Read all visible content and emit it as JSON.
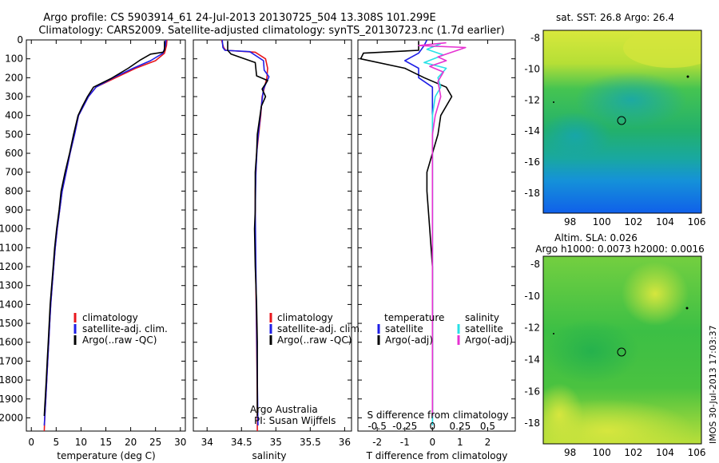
{
  "title": {
    "line1": "Argo profile: CS 5903914_61 24-Jul-2013 20130725_504 13.308S 101.299E",
    "line2": "Climatology: CARS2009. Satellite-adjusted climatology: synTS_20130723.nc (1.7d earlier)"
  },
  "colors": {
    "climatology": "#e8161c",
    "satellite": "#1e1ee6",
    "argo": "#000000",
    "sal_satellite": "#28e1e6",
    "sal_argo": "#e632d2"
  },
  "chart_data": [
    {
      "type": "line",
      "panel": "temperature",
      "xlabel": "temperature (deg C)",
      "ylabel": "",
      "xlim": [
        -1,
        31
      ],
      "ylim": [
        2070,
        0
      ],
      "xticks": [
        0,
        5,
        10,
        15,
        20,
        25,
        30
      ],
      "yticks": [
        0,
        100,
        200,
        300,
        400,
        500,
        600,
        700,
        800,
        900,
        1000,
        1100,
        1200,
        1300,
        1400,
        1500,
        1600,
        1700,
        1800,
        1900,
        2000
      ],
      "legend": [
        {
          "label": "climatology",
          "color": "#e8161c"
        },
        {
          "label": "satellite-adj. clim.",
          "color": "#1e1ee6"
        },
        {
          "label": "Argo(..raw -QC)",
          "color": "#000000"
        }
      ],
      "series": [
        {
          "name": "climatology",
          "color": "#e8161c",
          "points": [
            [
              27.3,
              0
            ],
            [
              27.2,
              30
            ],
            [
              26.8,
              70
            ],
            [
              25,
              110
            ],
            [
              21,
              150
            ],
            [
              17,
              200
            ],
            [
              13,
              250
            ],
            [
              11.5,
              300
            ],
            [
              10.5,
              350
            ],
            [
              9.5,
              400
            ],
            [
              8.7,
              500
            ],
            [
              7.8,
              600
            ],
            [
              7,
              700
            ],
            [
              6.2,
              800
            ],
            [
              5.7,
              900
            ],
            [
              5.2,
              1000
            ],
            [
              4.8,
              1100
            ],
            [
              4.5,
              1200
            ],
            [
              4.2,
              1300
            ],
            [
              3.9,
              1400
            ],
            [
              3.7,
              1500
            ],
            [
              3.5,
              1600
            ],
            [
              3.3,
              1700
            ],
            [
              3.1,
              1800
            ],
            [
              2.9,
              1900
            ],
            [
              2.7,
              2000
            ],
            [
              2.6,
              2070
            ]
          ]
        },
        {
          "name": "satellite-adj. clim.",
          "color": "#1e1ee6",
          "points": [
            [
              27.1,
              0
            ],
            [
              27,
              30
            ],
            [
              26.5,
              70
            ],
            [
              24,
              110
            ],
            [
              20.5,
              150
            ],
            [
              16.5,
              200
            ],
            [
              13,
              250
            ],
            [
              11.5,
              300
            ],
            [
              10.5,
              350
            ],
            [
              9.5,
              400
            ],
            [
              8.7,
              500
            ],
            [
              7.8,
              600
            ],
            [
              7,
              700
            ],
            [
              6.2,
              800
            ],
            [
              5.7,
              900
            ],
            [
              5.2,
              1000
            ],
            [
              4.8,
              1100
            ],
            [
              4.5,
              1200
            ],
            [
              4.2,
              1300
            ],
            [
              3.9,
              1400
            ],
            [
              3.7,
              1500
            ],
            [
              3.5,
              1600
            ],
            [
              3.3,
              1700
            ],
            [
              3.1,
              1800
            ],
            [
              2.9,
              1900
            ],
            [
              2.7,
              2000
            ],
            [
              2.6,
              2040
            ]
          ]
        },
        {
          "name": "Argo(..raw -QC)",
          "color": "#000000",
          "points": [
            [
              26.8,
              5
            ],
            [
              26.8,
              55
            ],
            [
              26.5,
              65
            ],
            [
              24,
              75
            ],
            [
              22,
              105
            ],
            [
              19.5,
              150
            ],
            [
              16,
              205
            ],
            [
              12.5,
              250
            ],
            [
              11.3,
              300
            ],
            [
              10.3,
              350
            ],
            [
              9.4,
              400
            ],
            [
              8.5,
              500
            ],
            [
              7.7,
              600
            ],
            [
              6.8,
              700
            ],
            [
              6,
              800
            ],
            [
              5.6,
              900
            ],
            [
              5.1,
              1000
            ],
            [
              4.7,
              1100
            ],
            [
              4.4,
              1200
            ],
            [
              4.1,
              1300
            ],
            [
              3.8,
              1400
            ],
            [
              3.6,
              1500
            ],
            [
              3.4,
              1600
            ],
            [
              3.2,
              1700
            ],
            [
              3,
              1800
            ],
            [
              2.8,
              1900
            ],
            [
              2.6,
              1990
            ]
          ]
        }
      ]
    },
    {
      "type": "line",
      "panel": "salinity",
      "xlabel": "salinity",
      "ylabel": "",
      "xlim": [
        33.8,
        36.1
      ],
      "ylim": [
        2070,
        0
      ],
      "xticks": [
        34,
        34.5,
        35,
        35.5,
        36
      ],
      "legend": [
        {
          "label": "climatology",
          "color": "#e8161c"
        },
        {
          "label": "satellite-adj. clim.",
          "color": "#1e1ee6"
        },
        {
          "label": "Argo(..raw -QC)",
          "color": "#000000"
        }
      ],
      "annotation": [
        "Argo Australia",
        "PI: Susan Wijffels"
      ],
      "series": [
        {
          "name": "climatology",
          "color": "#e8161c",
          "points": [
            [
              34.21,
              0
            ],
            [
              34.24,
              40
            ],
            [
              34.27,
              55
            ],
            [
              34.7,
              65
            ],
            [
              34.85,
              100
            ],
            [
              34.88,
              150
            ],
            [
              34.87,
              200
            ],
            [
              34.8,
              300
            ],
            [
              34.78,
              400
            ],
            [
              34.75,
              500
            ],
            [
              34.72,
              600
            ],
            [
              34.7,
              800
            ],
            [
              34.7,
              1000
            ],
            [
              34.71,
              1300
            ],
            [
              34.72,
              1600
            ],
            [
              34.73,
              1900
            ],
            [
              34.73,
              2070
            ]
          ]
        },
        {
          "name": "satellite-adj. clim.",
          "color": "#1e1ee6",
          "points": [
            [
              34.22,
              0
            ],
            [
              34.23,
              40
            ],
            [
              34.26,
              55
            ],
            [
              34.62,
              62
            ],
            [
              34.82,
              110
            ],
            [
              34.83,
              160
            ],
            [
              34.9,
              195
            ],
            [
              34.82,
              260
            ],
            [
              34.79,
              350
            ],
            [
              34.76,
              450
            ],
            [
              34.73,
              550
            ],
            [
              34.71,
              700
            ],
            [
              34.7,
              900
            ],
            [
              34.71,
              1200
            ],
            [
              34.72,
              1500
            ],
            [
              34.73,
              1800
            ],
            [
              34.74,
              2040
            ]
          ]
        },
        {
          "name": "Argo(..raw -QC)",
          "color": "#000000",
          "points": [
            [
              34.3,
              5
            ],
            [
              34.3,
              55
            ],
            [
              34.35,
              75
            ],
            [
              34.7,
              120
            ],
            [
              34.72,
              190
            ],
            [
              34.88,
              215
            ],
            [
              34.8,
              260
            ],
            [
              34.85,
              300
            ],
            [
              34.79,
              350
            ],
            [
              34.75,
              450
            ],
            [
              34.73,
              500
            ],
            [
              34.72,
              600
            ],
            [
              34.7,
              700
            ],
            [
              34.7,
              900
            ],
            [
              34.69,
              1000
            ],
            [
              34.7,
              1200
            ],
            [
              34.72,
              1400
            ],
            [
              34.73,
              1600
            ],
            [
              34.73,
              1800
            ],
            [
              34.73,
              1990
            ]
          ]
        }
      ]
    },
    {
      "type": "line",
      "panel": "difference",
      "xlabel": "T difference from climatology",
      "xlabel2": "S difference from climatology",
      "xlim": [
        -2.7,
        3
      ],
      "ylim": [
        2070,
        0
      ],
      "xticks": [
        -2,
        -1,
        0,
        1,
        2
      ],
      "xticks_s": [
        "-0.5",
        "-0.25",
        "0",
        "0.25",
        "0.5"
      ],
      "legend_temperature": {
        "title": "temperature",
        "items": [
          {
            "label": "satellite",
            "color": "#1e1ee6"
          },
          {
            "label": "Argo(-adj)",
            "color": "#000000"
          }
        ]
      },
      "legend_salinity": {
        "title": "salinity",
        "items": [
          {
            "label": "satellite",
            "color": "#28e1e6"
          },
          {
            "label": "Argo(-adj)",
            "color": "#e632d2"
          }
        ]
      },
      "series": [
        {
          "name": "temperature satellite",
          "color": "#1e1ee6",
          "points": [
            [
              -0.2,
              0
            ],
            [
              -0.3,
              30
            ],
            [
              -0.5,
              70
            ],
            [
              -1,
              110
            ],
            [
              -0.5,
              150
            ],
            [
              -0.5,
              200
            ],
            [
              0,
              250
            ],
            [
              0,
              400
            ],
            [
              0,
              600
            ],
            [
              0,
              1000
            ],
            [
              0,
              1500
            ],
            [
              0,
              2040
            ]
          ]
        },
        {
          "name": "temperature Argo(-adj)",
          "color": "#000000",
          "points": [
            [
              -0.5,
              5
            ],
            [
              -0.5,
              55
            ],
            [
              -2.5,
              70
            ],
            [
              -2.6,
              100
            ],
            [
              -1,
              150
            ],
            [
              -0.3,
              200
            ],
            [
              0.5,
              250
            ],
            [
              0.7,
              300
            ],
            [
              0.3,
              400
            ],
            [
              0.2,
              500
            ],
            [
              0,
              600
            ],
            [
              -0.2,
              700
            ],
            [
              -0.2,
              800
            ],
            [
              -0.1,
              1000
            ],
            [
              0,
              1200
            ],
            [
              0,
              1400
            ],
            [
              0,
              1600
            ],
            [
              0,
              1800
            ],
            [
              0,
              1990
            ]
          ]
        },
        {
          "name": "salinity satellite",
          "color": "#28e1e6",
          "points": [
            [
              0.3,
              20
            ],
            [
              -0.2,
              50
            ],
            [
              0.4,
              80
            ],
            [
              -0.3,
              120
            ],
            [
              0.5,
              150
            ],
            [
              0.2,
              200
            ],
            [
              0.3,
              250
            ],
            [
              0.1,
              300
            ],
            [
              0,
              400
            ],
            [
              0,
              700
            ],
            [
              0,
              1000
            ],
            [
              0,
              1500
            ],
            [
              0,
              2040
            ]
          ]
        },
        {
          "name": "salinity Argo(-adj)",
          "color": "#e632d2",
          "points": [
            [
              0.5,
              15
            ],
            [
              -0.5,
              30
            ],
            [
              1.2,
              40
            ],
            [
              0.5,
              75
            ],
            [
              0.2,
              90
            ],
            [
              0.5,
              110
            ],
            [
              -0.1,
              140
            ],
            [
              0.4,
              170
            ],
            [
              0.2,
              220
            ],
            [
              0.3,
              300
            ],
            [
              0.1,
              400
            ],
            [
              0,
              500
            ],
            [
              0,
              700
            ],
            [
              0,
              1000
            ],
            [
              0,
              1500
            ],
            [
              0,
              1990
            ]
          ]
        }
      ]
    },
    {
      "type": "heatmap",
      "panel": "sst_map",
      "title": "sat. SST: 26.8  Argo: 26.4",
      "xlim": [
        96.3,
        106.3
      ],
      "ylim": [
        -19.3,
        -7.5
      ],
      "xticks": [
        "98",
        "100",
        "102",
        "104",
        "106"
      ],
      "yticks": [
        "-8",
        "-10",
        "-12",
        "-14",
        "-16",
        "-18"
      ],
      "marker": [
        101.3,
        -13.3
      ]
    },
    {
      "type": "heatmap",
      "panel": "sla_map",
      "title": "Altim. SLA: 0.026",
      "title2": "Argo h1000: 0.0073 h2000: 0.0016",
      "xlim": [
        96.3,
        106.3
      ],
      "ylim": [
        -19.3,
        -7.5
      ],
      "xticks": [
        "98",
        "100",
        "102",
        "104",
        "106"
      ],
      "yticks": [
        "-8",
        "-10",
        "-12",
        "-14",
        "-16",
        "-18"
      ],
      "marker": [
        101.3,
        -13.3
      ]
    }
  ],
  "footer_stamp": "IMOS 30-Jul-2013 17:03:37"
}
